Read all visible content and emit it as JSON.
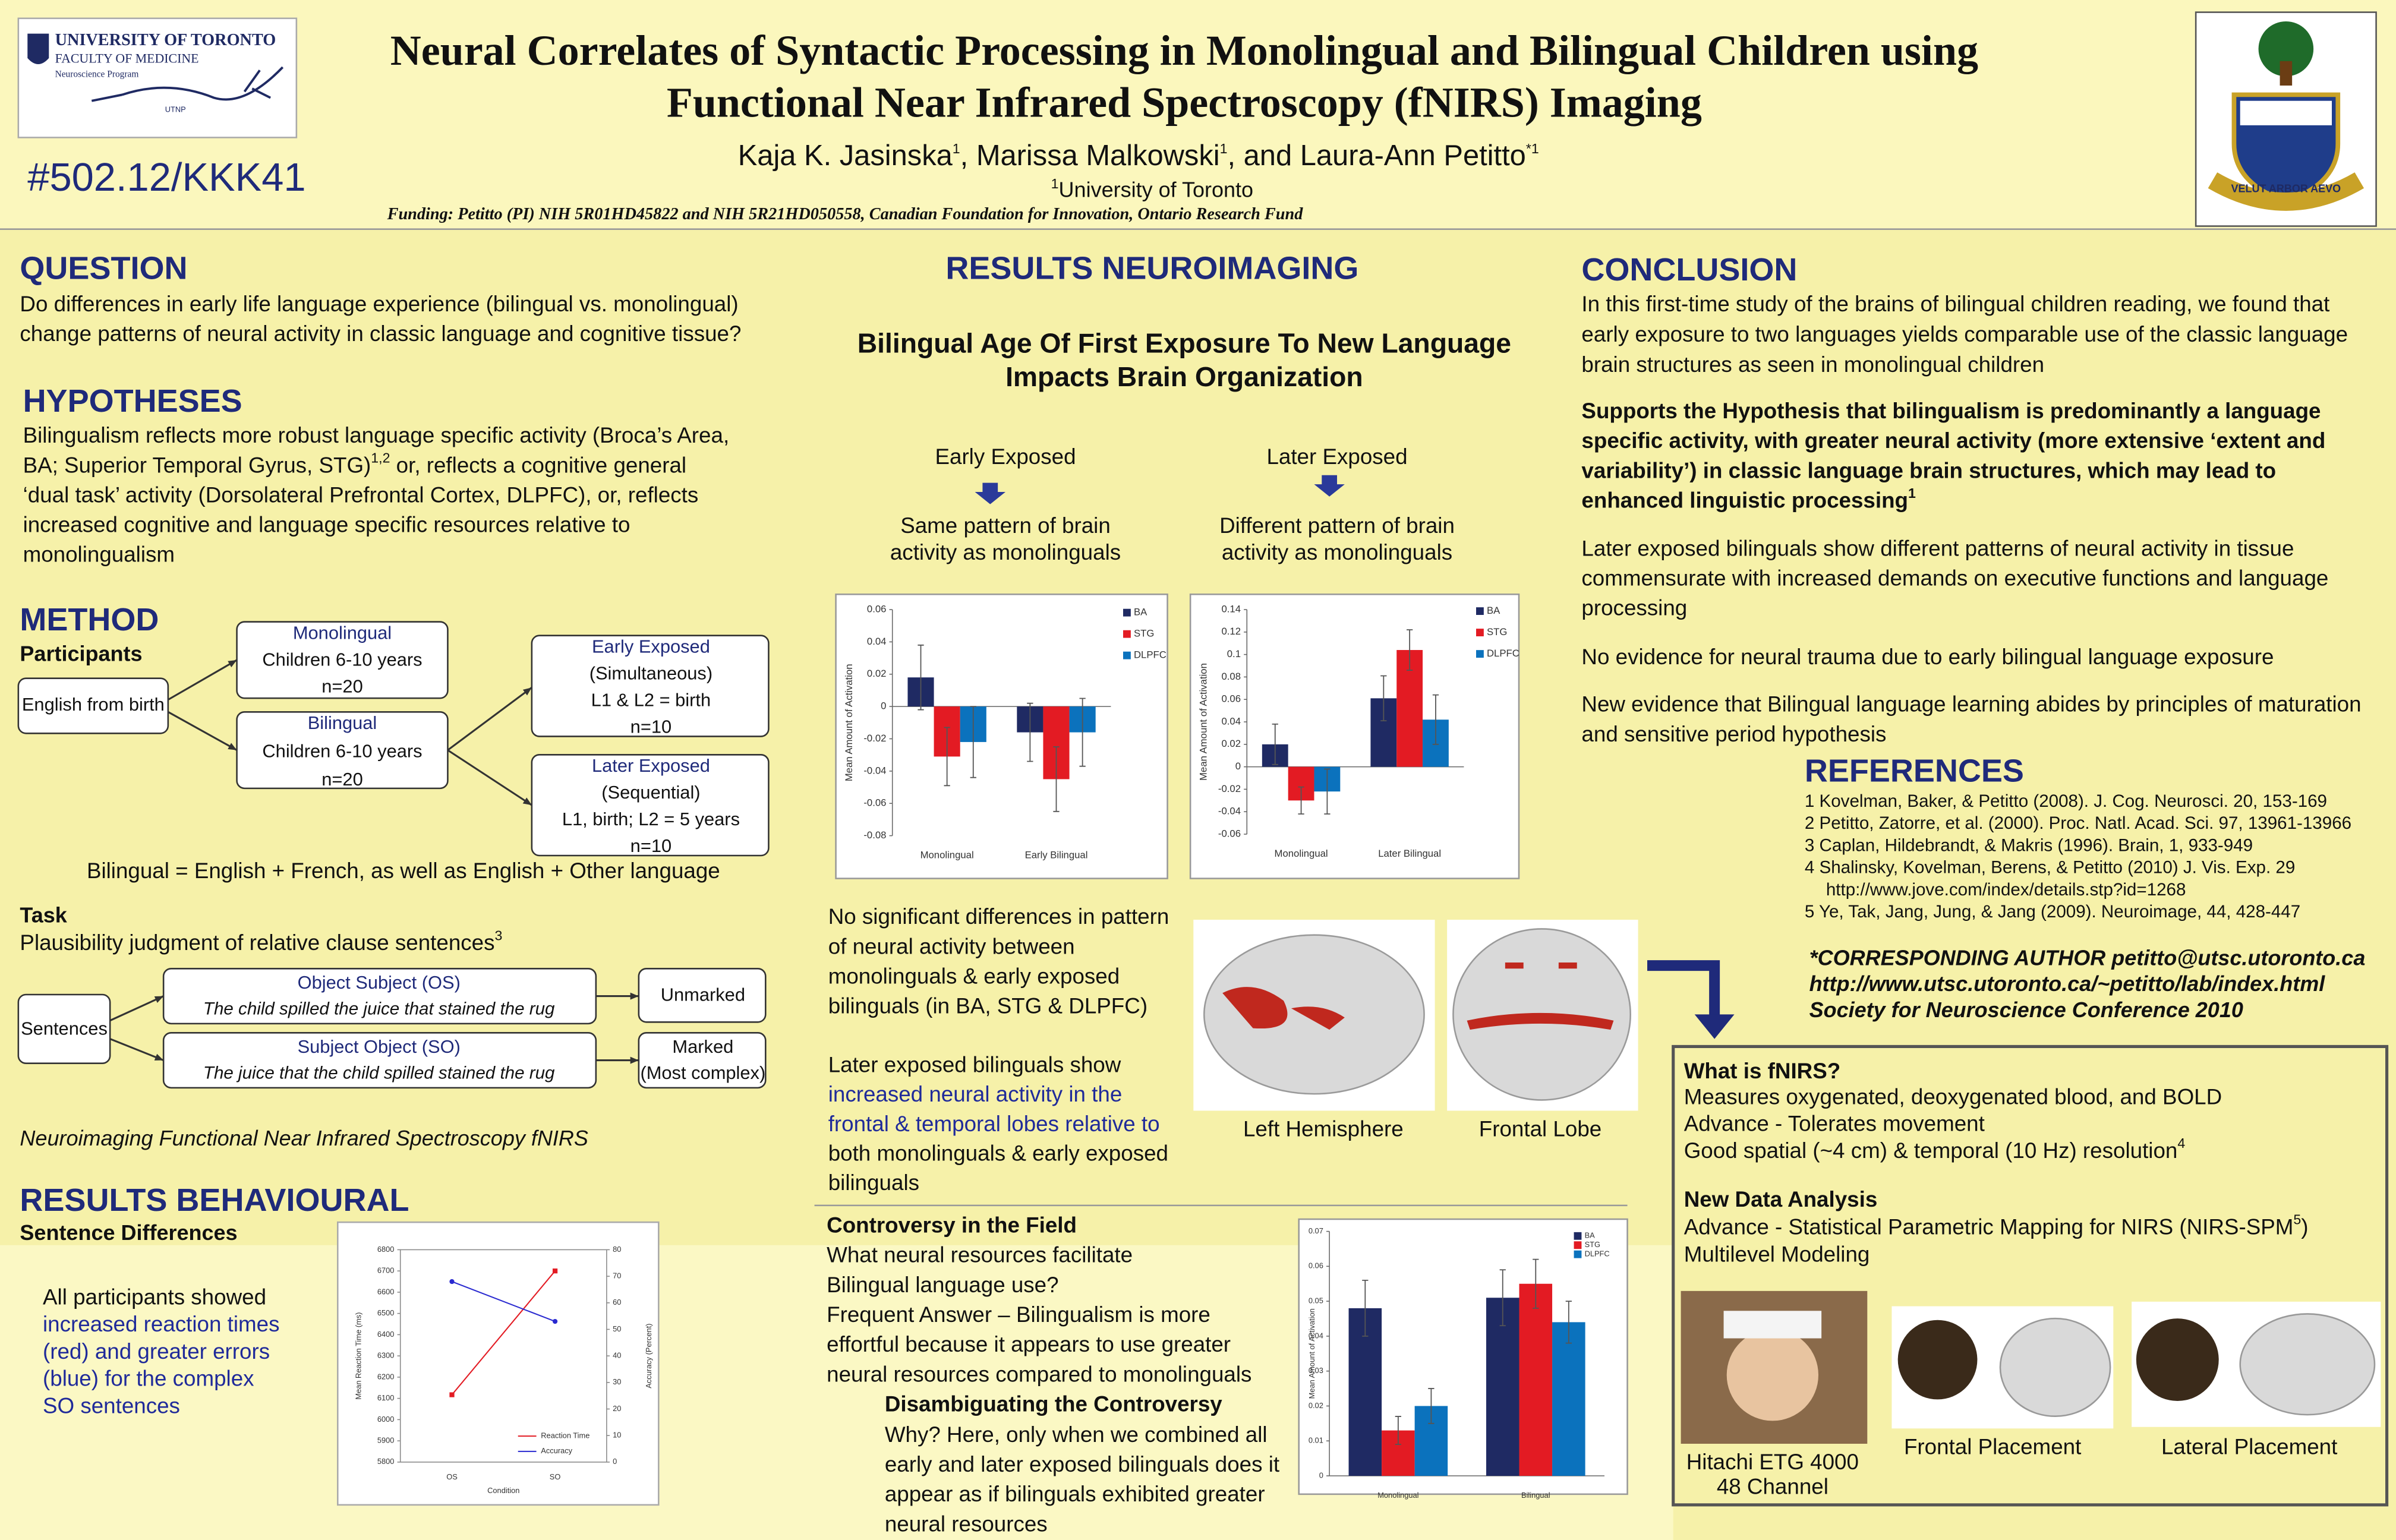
{
  "header": {
    "logo": {
      "university": "UNIVERSITY OF TORONTO",
      "faculty": "FACULTY OF MEDICINE",
      "program": "Neuroscience Program",
      "unit": "UTNP"
    },
    "title": [
      "Neural Correlates of Syntactic Processing in Monolingual and Bilingual Children using",
      "Functional Near Infrared Spectroscopy (fNIRS) Imaging"
    ],
    "poster_id": "#502.12/KKK41",
    "authors": [
      "Kaja K. Jasinska",
      "1",
      ", Marissa Malkowski",
      "1",
      ", and Laura-Ann Petitto",
      "*1"
    ],
    "affiliation": {
      "sup": "1",
      "name": "University of Toronto"
    },
    "funding": "Funding: Petitto (PI) NIH 5R01HD45822 and NIH 5R21HD050558, Canadian Foundation for Innovation, Ontario Research Fund",
    "crest_motto": "VELUT ARBOR AEVO"
  },
  "question": {
    "heading": "QUESTION",
    "lines": [
      "Do differences in early life language experience (bilingual vs. monolingual)",
      "change patterns of neural activity in classic language and cognitive tissue?"
    ]
  },
  "hypotheses": {
    "heading": "HYPOTHESES",
    "lines": [
      "Bilingualism reflects more robust language specific activity (Broca’s Area,",
      [
        "BA; Superior Temporal Gyrus, STG)",
        "1,2",
        " or, reflects a cognitive general"
      ],
      "‘dual task’ activity (Dorsolateral Prefrontal Cortex, DLPFC), or, reflects",
      "increased cognitive and language specific resources relative to",
      "monolingualism"
    ]
  },
  "method": {
    "heading": "METHOD",
    "participants": "Participants",
    "start": "English from birth",
    "monolingual": [
      "Monolingual",
      "Children 6-10 years",
      "n=20"
    ],
    "bilingual": [
      "Bilingual",
      "Children 6-10 years",
      "n=20"
    ],
    "early": [
      "Early Exposed",
      "(Simultaneous)",
      "L1 & L2 = birth",
      "n=10"
    ],
    "later": [
      "Later Exposed",
      "(Sequential)",
      "L1, birth; L2 = 5 years",
      "n=10"
    ],
    "note": "Bilingual = English + French, as well as English + Other language",
    "task_heading": "Task",
    "task": [
      "Plausibility judgment of relative clause sentences",
      "3"
    ],
    "sentences": "Sentences",
    "os": [
      "Object Subject (OS)",
      "The child spilled the juice that stained the rug"
    ],
    "so": [
      "Subject Object (SO)",
      "The juice that the child spilled stained the rug"
    ],
    "unmarked": "Unmarked",
    "marked": [
      "Marked",
      "(Most complex)"
    ],
    "neuroimaging": "Neuroimaging Functional Near Infrared Spectroscopy fNIRS"
  },
  "behavioural": {
    "heading": "RESULTS BEHAVIOURAL",
    "subheading": "Sentence Differences",
    "lines": [
      "All participants showed",
      "increased reaction times",
      "(red) and greater errors",
      "(blue) for the complex",
      "SO sentences"
    ]
  },
  "neuroimaging": {
    "heading": "RESULTS NEUROIMAGING",
    "subtitle": [
      "Bilingual Age Of First Exposure To New Language",
      "Impacts Brain Organization"
    ],
    "early_label": "Early Exposed",
    "later_label": "Later Exposed",
    "early_text": [
      "Same pattern of  brain",
      "activity as monolinguals"
    ],
    "later_text": [
      "Different pattern of  brain",
      "activity as monolinguals"
    ],
    "finding1": [
      "No significant differences in pattern",
      "of neural activity between",
      "monolinguals & early exposed",
      "bilinguals (in BA, STG & DLPFC)"
    ],
    "finding2": [
      "Later exposed bilinguals show",
      "increased neural activity in the",
      "frontal & temporal lobes relative to",
      "both monolinguals & early exposed",
      "bilinguals"
    ],
    "captions": [
      "Left Hemisphere",
      "Frontal Lobe"
    ],
    "controversy": [
      "Controversy in the Field",
      "What neural resources facilitate",
      "Bilingual language use?",
      "Frequent Answer – Bilingualism is more",
      "effortful because it appears to use greater",
      "neural resources compared to monolinguals"
    ],
    "disambiguating_heading": "Disambiguating the Controversy",
    "disambiguating": [
      "Why? Here, only when we combined all",
      "early and later exposed bilinguals does it",
      "appear as if bilinguals exhibited greater",
      "neural resources"
    ]
  },
  "conclusion": {
    "heading": "CONCLUSION",
    "p1": [
      "In this first-time study of the brains of bilingual children reading, we found that",
      "early exposure to two languages yields comparable use of the classic language",
      "brain structures as seen in monolingual children"
    ],
    "p2": [
      "Supports the Hypothesis that bilingualism is predominantly a language",
      "specific activity, with greater neural activity (more extensive ‘extent and",
      "variability’) in classic language brain structures, which may lead to",
      [
        "enhanced linguistic processing",
        "1"
      ]
    ],
    "p3": [
      "Later exposed bilinguals show different patterns of neural activity in tissue",
      "commensurate with increased demands on executive functions and language",
      "processing"
    ],
    "p4": [
      "No evidence for neural trauma due to early bilingual language exposure"
    ],
    "p5": [
      "New evidence that Bilingual language learning abides by principles of maturation",
      "and sensitive period hypothesis"
    ]
  },
  "references": {
    "heading": "REFERENCES",
    "lines": [
      "1 Kovelman, Baker, & Petitto (2008). J. Cog. Neurosci. 20, 153-169",
      "2 Petitto, Zatorre, et al. (2000). Proc. Natl. Acad. Sci. 97, 13961-13966",
      "3 Caplan, Hildebrandt, & Makris (1996). Brain, 1, 933-949",
      "4 Shalinsky, Kovelman, Berens, & Petitto (2010) J. Vis. Exp. 29",
      "http://www.jove.com/index/details.stp?id=1268",
      "5 Ye, Tak, Jang, Jung, & Jang (2009). Neuroimage, 44, 428-447"
    ]
  },
  "corresponding": [
    "*CORRESPONDING AUTHOR  petitto@utsc.utoronto.ca",
    "http://www.utsc.utoronto.ca/~petitto/lab/index.html",
    "Society for Neuroscience Conference 2010"
  ],
  "fnirs": {
    "heading": "What is fNIRS?",
    "lines": [
      "Measures oxygenated, deoxygenated blood, and BOLD",
      "Advance - Tolerates movement",
      [
        "Good spatial (~4 cm) & temporal (10 Hz) resolution",
        "4"
      ]
    ],
    "heading2": "New Data Analysis",
    "lines2": [
      [
        "Advance - Statistical Parametric Mapping for NIRS (NIRS-SPM",
        "5",
        ")"
      ],
      "Multilevel Modeling"
    ],
    "device": [
      "Hitachi ETG 4000",
      "48 Channel"
    ],
    "frontal": "Frontal Placement",
    "lateral": "Lateral Placement"
  },
  "chart_data": [
    {
      "type": "bar",
      "ylabel": "Mean Amount of Activation",
      "categories": [
        "Monolingual",
        "Early Bilingual"
      ],
      "series": [
        {
          "name": "BA",
          "color": "#1f2a63",
          "values": [
            0.018,
            -0.016
          ],
          "errors": [
            0.02,
            0.018
          ]
        },
        {
          "name": "STG",
          "color": "#e31b23",
          "values": [
            -0.031,
            -0.045
          ],
          "errors": [
            0.018,
            0.02
          ]
        },
        {
          "name": "DLPFC",
          "color": "#0b72bd",
          "values": [
            -0.022,
            -0.016
          ],
          "errors": [
            0.022,
            0.021
          ]
        }
      ],
      "ylim": [
        -0.08,
        0.06
      ],
      "yticks": [
        -0.08,
        -0.06,
        -0.04,
        -0.02,
        0,
        0.02,
        0.04,
        0.06
      ]
    },
    {
      "type": "bar",
      "ylabel": "Mean Amount of Activation",
      "categories": [
        "Monolingual",
        "Later Bilingual"
      ],
      "series": [
        {
          "name": "BA",
          "color": "#1f2a63",
          "values": [
            0.02,
            0.061
          ],
          "errors": [
            0.018,
            0.02
          ]
        },
        {
          "name": "STG",
          "color": "#e31b23",
          "values": [
            -0.03,
            0.104
          ],
          "errors": [
            0.012,
            0.018
          ]
        },
        {
          "name": "DLPFC",
          "color": "#0b72bd",
          "values": [
            -0.022,
            0.042
          ],
          "errors": [
            0.02,
            0.022
          ]
        }
      ],
      "ylim": [
        -0.06,
        0.14
      ],
      "yticks": [
        -0.06,
        -0.04,
        -0.02,
        0,
        0.02,
        0.04,
        0.06,
        0.08,
        0.1,
        0.12,
        0.14
      ]
    },
    {
      "type": "bar",
      "ylabel": "Mean Amount of Activation",
      "categories": [
        "Monolingual",
        "Bilingual"
      ],
      "series": [
        {
          "name": "BA",
          "color": "#1f2a63",
          "values": [
            0.048,
            0.051
          ],
          "errors": [
            0.008,
            0.008
          ]
        },
        {
          "name": "STG",
          "color": "#e31b23",
          "values": [
            0.013,
            0.055
          ],
          "errors": [
            0.004,
            0.007
          ]
        },
        {
          "name": "DLPFC",
          "color": "#0b72bd",
          "values": [
            0.02,
            0.044
          ],
          "errors": [
            0.005,
            0.006
          ]
        }
      ],
      "ylim": [
        0,
        0.07
      ],
      "yticks": [
        0,
        0.01,
        0.02,
        0.03,
        0.04,
        0.05,
        0.06,
        0.07
      ]
    },
    {
      "type": "line",
      "xlabel": "Condition",
      "ylabel": "Mean Reaction Time (ms)",
      "y2label": "Accuracy (Percent)",
      "categories": [
        "OS",
        "SO"
      ],
      "series": [
        {
          "name": "Reaction Time",
          "color": "#e31b23",
          "values": [
            6117,
            6700
          ]
        },
        {
          "name": "Accuracy",
          "color": "#2a2ad0",
          "values": [
            68,
            53
          ],
          "axis": "y2"
        }
      ],
      "ylim": [
        5800,
        6800
      ],
      "yticks": [
        5800,
        5900,
        6000,
        6100,
        6200,
        6300,
        6400,
        6500,
        6600,
        6700,
        6800
      ],
      "y2lim": [
        0,
        80
      ],
      "y2ticks": [
        0,
        10,
        20,
        30,
        40,
        50,
        60,
        70,
        80
      ]
    }
  ]
}
